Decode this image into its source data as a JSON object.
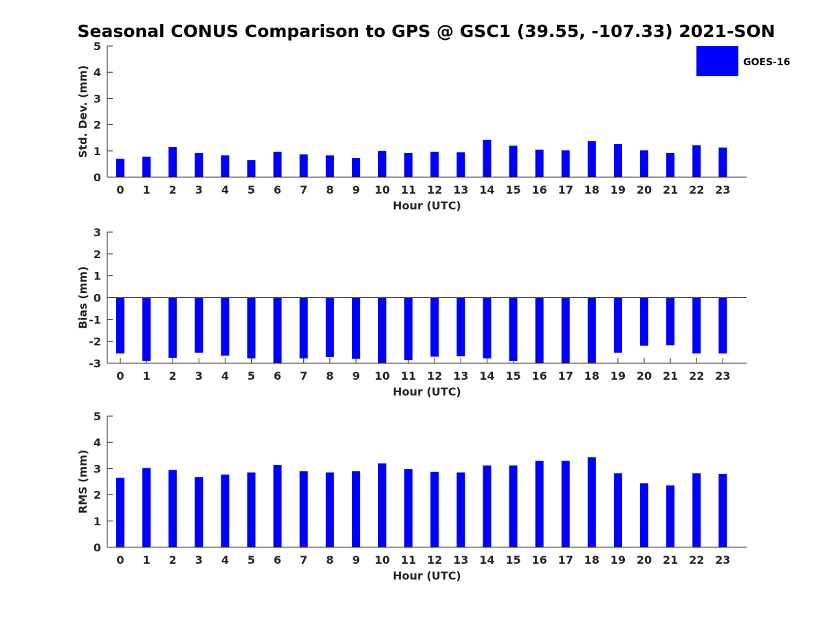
{
  "title": "Seasonal CONUS Comparison to GPS @ GSC1 (39.55, -107.33) 2021-SON",
  "legend": {
    "label": "GOES-16",
    "color": "#0000ff"
  },
  "chart_data": [
    {
      "type": "bar",
      "ylabel": "Std. Dev. (mm)",
      "xlabel": "Hour (UTC)",
      "ylim": [
        0,
        5
      ],
      "yticks": [
        0,
        1,
        2,
        3,
        4,
        5
      ],
      "categories": [
        "0",
        "1",
        "2",
        "3",
        "4",
        "5",
        "6",
        "7",
        "8",
        "9",
        "10",
        "11",
        "12",
        "13",
        "14",
        "15",
        "16",
        "17",
        "18",
        "19",
        "20",
        "21",
        "22",
        "23"
      ],
      "series": [
        {
          "name": "GOES-16",
          "values": [
            0.7,
            0.78,
            1.15,
            0.92,
            0.83,
            0.65,
            0.97,
            0.87,
            0.83,
            0.73,
            1.0,
            0.92,
            0.97,
            0.95,
            1.42,
            1.2,
            1.05,
            1.02,
            1.38,
            1.26,
            1.02,
            0.92,
            1.22,
            1.13
          ]
        }
      ]
    },
    {
      "type": "bar",
      "ylabel": "Bias (mm)",
      "xlabel": "Hour (UTC)",
      "ylim": [
        -3,
        3
      ],
      "yticks": [
        -3,
        -2,
        -1,
        0,
        1,
        2,
        3
      ],
      "categories": [
        "0",
        "1",
        "2",
        "3",
        "4",
        "5",
        "6",
        "7",
        "8",
        "9",
        "10",
        "11",
        "12",
        "13",
        "14",
        "15",
        "16",
        "17",
        "18",
        "19",
        "20",
        "21",
        "22",
        "23"
      ],
      "series": [
        {
          "name": "GOES-16",
          "values": [
            -2.55,
            -2.9,
            -2.75,
            -2.52,
            -2.65,
            -2.78,
            -3.0,
            -2.78,
            -2.72,
            -2.8,
            -3.0,
            -2.85,
            -2.7,
            -2.68,
            -2.78,
            -2.9,
            -3.0,
            -3.0,
            -3.0,
            -2.52,
            -2.2,
            -2.18,
            -2.55,
            -2.55
          ]
        }
      ]
    },
    {
      "type": "bar",
      "ylabel": "RMS (mm)",
      "xlabel": "Hour (UTC)",
      "ylim": [
        0,
        5
      ],
      "yticks": [
        0,
        1,
        2,
        3,
        4,
        5
      ],
      "categories": [
        "0",
        "1",
        "2",
        "3",
        "4",
        "5",
        "6",
        "7",
        "8",
        "9",
        "10",
        "11",
        "12",
        "13",
        "14",
        "15",
        "16",
        "17",
        "18",
        "19",
        "20",
        "21",
        "22",
        "23"
      ],
      "series": [
        {
          "name": "GOES-16",
          "values": [
            2.65,
            3.02,
            2.95,
            2.67,
            2.77,
            2.85,
            3.14,
            2.9,
            2.85,
            2.9,
            3.2,
            2.98,
            2.88,
            2.85,
            3.12,
            3.12,
            3.3,
            3.3,
            3.43,
            2.82,
            2.44,
            2.36,
            2.82,
            2.8
          ]
        }
      ]
    }
  ]
}
